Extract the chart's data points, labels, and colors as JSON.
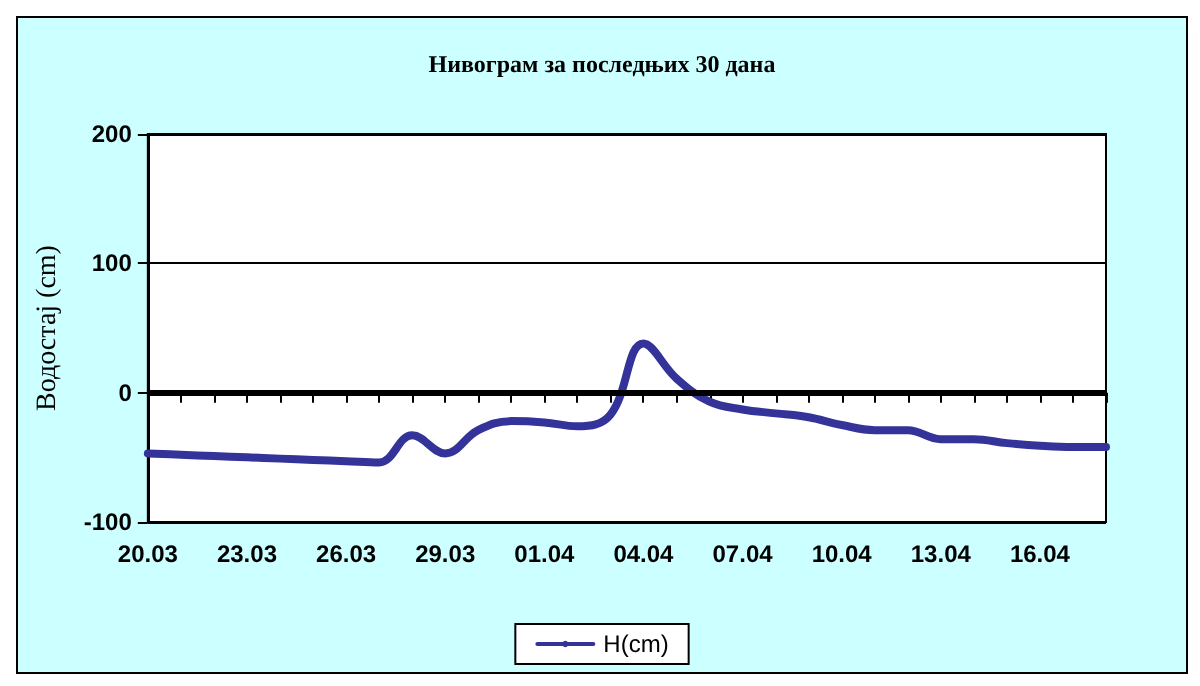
{
  "chart_data": {
    "type": "line",
    "title": "Нивограм за последњих 30 дана",
    "ylabel": "Водостај (cm)",
    "categories": [
      "20.03",
      null,
      null,
      "23.03",
      null,
      null,
      "26.03",
      null,
      null,
      "29.03",
      null,
      null,
      "01.04",
      null,
      null,
      "04.04",
      null,
      null,
      "07.04",
      null,
      null,
      "10.04",
      null,
      null,
      "13.04",
      null,
      null,
      "16.04",
      null,
      null
    ],
    "series": [
      {
        "name": "H(cm)",
        "color": "#333399",
        "values": [
          -47,
          -48,
          -49,
          -50,
          -51,
          -52,
          -53,
          -54,
          -33,
          -47,
          -29,
          -22,
          -23,
          -26,
          -17,
          38,
          11,
          -7,
          -13,
          -16,
          -19,
          -25,
          -29,
          -29,
          -36,
          -36,
          -39,
          -41,
          -42,
          -42
        ]
      }
    ],
    "ylim": [
      -100,
      200
    ],
    "yticks": [
      -100,
      0,
      100,
      200
    ],
    "grid": "y",
    "ref_lines": [
      {
        "axis": "y",
        "value": 0,
        "color": "#000000"
      }
    ],
    "legend": "bottom",
    "marker": "none",
    "line_style": "solid"
  }
}
